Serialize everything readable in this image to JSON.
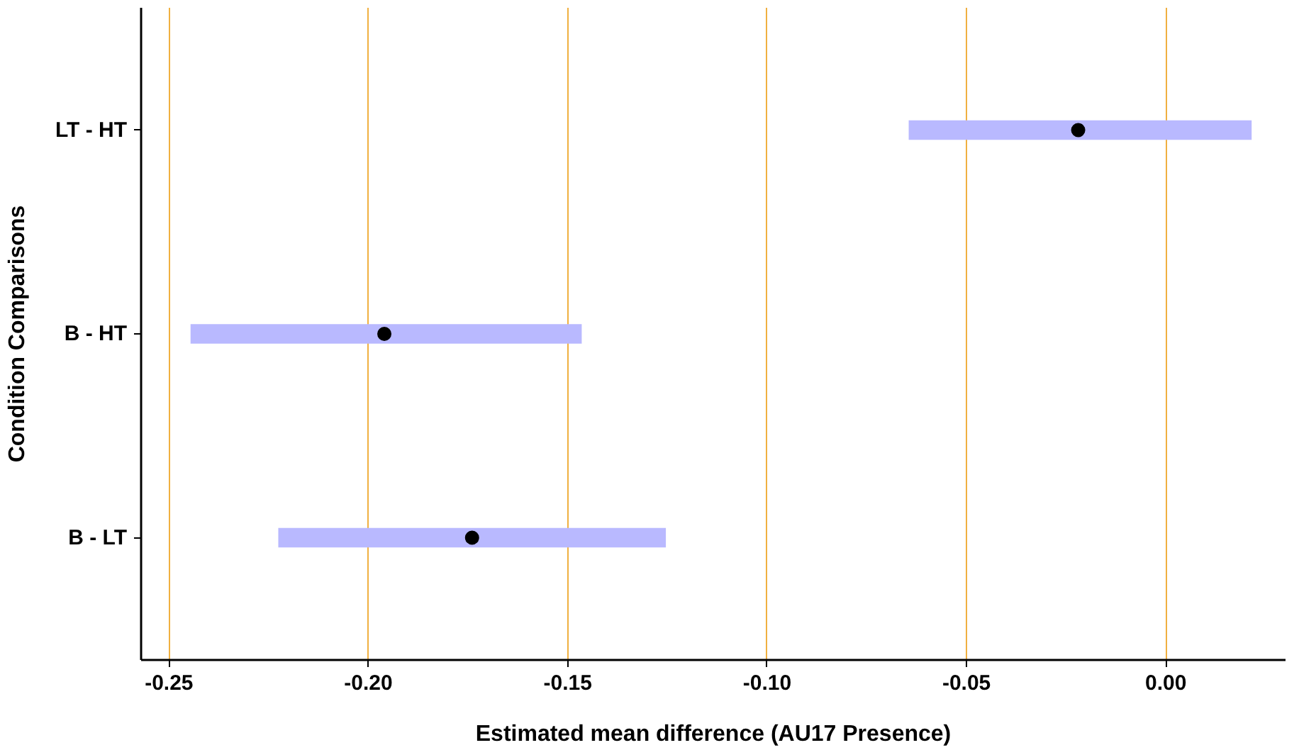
{
  "chart_data": {
    "type": "bar",
    "orientation": "horizontal",
    "xlabel": "Estimated mean difference (AU17 Presence)",
    "ylabel": "Condition Comparisons",
    "categories": [
      "LT - HT",
      "B - HT",
      "B - LT"
    ],
    "series": [
      {
        "color": "#b9b9ff",
        "base": [
          -0.0645,
          -0.2446,
          -0.2226
        ],
        "values": [
          0.086,
          0.0981,
          0.0972
        ]
      },
      {
        "type": "scatter",
        "color": "#000000",
        "x": [
          "LT - HT",
          "B - HT",
          "B - LT"
        ],
        "values": [
          -0.022,
          -0.196,
          -0.174
        ]
      }
    ],
    "xlim": [
      -0.257,
      0.03
    ],
    "xticks": [
      {
        "value": -0.25,
        "label": "-0.25"
      },
      {
        "value": -0.2,
        "label": "-0.20"
      },
      {
        "value": -0.15,
        "label": "-0.15"
      },
      {
        "value": -0.1,
        "label": "-0.10"
      },
      {
        "value": -0.05,
        "label": "-0.05"
      },
      {
        "value": 0,
        "label": "0.00"
      }
    ],
    "grid": "x",
    "marker": "circle"
  }
}
